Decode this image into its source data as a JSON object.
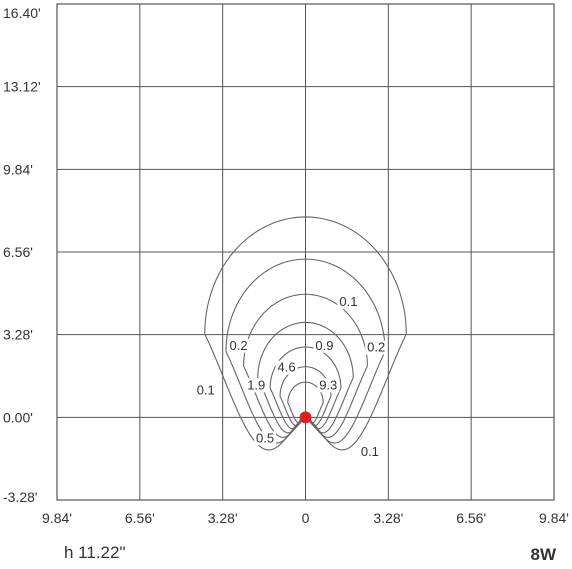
{
  "chart_data": {
    "type": "contour",
    "xlim": [
      -9.84,
      9.84
    ],
    "ylim": [
      -3.28,
      16.4
    ],
    "x_ticks": [
      "9.84'",
      "6.56'",
      "3.28'",
      "0",
      "3.28'",
      "6.56'",
      "9.84'"
    ],
    "y_ticks": [
      "16.40'",
      "13.12'",
      "9.84'",
      "6.56'",
      "3.28'",
      "0.00'",
      "-3.28'"
    ],
    "grid": true,
    "source": {
      "x": 0,
      "y": 0,
      "color": "#e0201c"
    },
    "contour_levels": [
      "0.1",
      "0.2",
      "0.5",
      "0.9",
      "1.9",
      "4.6",
      "9.3"
    ],
    "labels": [
      {
        "text": "0.1",
        "x": 1.7,
        "y": 4.45
      },
      {
        "text": "0.9",
        "x": 0.75,
        "y": 2.72
      },
      {
        "text": "0.2",
        "x": 2.8,
        "y": 2.65
      },
      {
        "text": "0.2",
        "x": -2.65,
        "y": 2.72
      },
      {
        "text": "4.6",
        "x": -0.75,
        "y": 1.85
      },
      {
        "text": "1.9",
        "x": -1.95,
        "y": 1.15
      },
      {
        "text": "9.3",
        "x": 0.9,
        "y": 1.15
      },
      {
        "text": "0.1",
        "x": -3.95,
        "y": 0.95
      },
      {
        "text": "0.5",
        "x": -1.6,
        "y": -0.95
      },
      {
        "text": "0.1",
        "x": 2.55,
        "y": -1.5
      }
    ],
    "line_color": "#666666",
    "grid_color": "#555555"
  },
  "footer": {
    "mounting_height": "h 11.22\"",
    "wattage": "8W"
  }
}
